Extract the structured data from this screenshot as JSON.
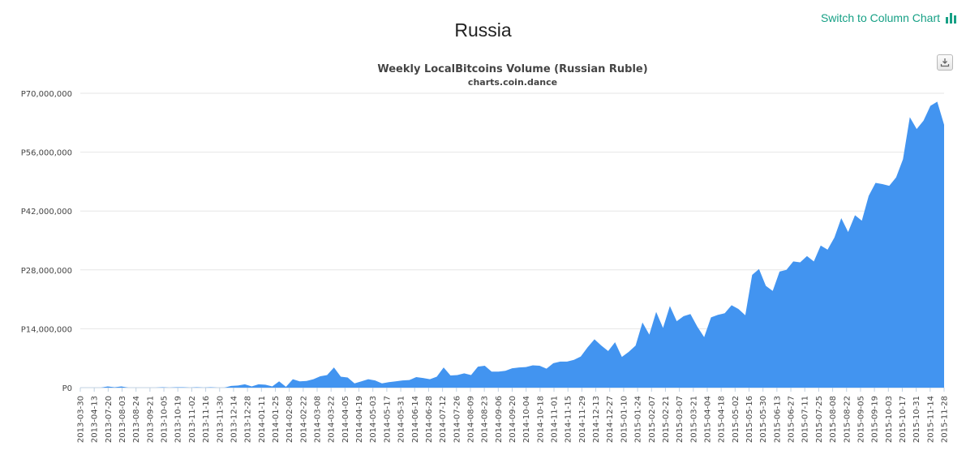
{
  "page": {
    "title": "Russia",
    "switch_label": "Switch to Column Chart",
    "switch_icon": "bar-chart-icon",
    "export_icon": "download-icon",
    "accent_color": "#16a085"
  },
  "chart_data": {
    "type": "area",
    "title": "Weekly LocalBitcoins Volume (Russian Ruble)",
    "subtitle": "charts.coin.dance",
    "xlabel": "",
    "ylabel": "",
    "ylim": [
      0,
      70000000
    ],
    "yticks": [
      0,
      14000000,
      28000000,
      42000000,
      56000000,
      70000000
    ],
    "ytick_labels": [
      "P0",
      "P14,000,000",
      "P28,000,000",
      "P42,000,000",
      "P56,000,000",
      "P70,000,000"
    ],
    "grid": true,
    "legend": "none",
    "color": "#4294f0",
    "x_tick_labels": [
      "2013-03-30",
      "2013-04-13",
      "2013-07-20",
      "2013-08-03",
      "2013-08-24",
      "2013-09-21",
      "2013-10-05",
      "2013-10-19",
      "2013-11-02",
      "2013-11-16",
      "2013-11-30",
      "2013-12-14",
      "2013-12-28",
      "2014-01-11",
      "2014-01-25",
      "2014-02-08",
      "2014-02-22",
      "2014-03-08",
      "2014-03-22",
      "2014-04-05",
      "2014-04-19",
      "2014-05-03",
      "2014-05-17",
      "2014-05-31",
      "2014-06-14",
      "2014-06-28",
      "2014-07-12",
      "2014-07-26",
      "2014-08-09",
      "2014-08-23",
      "2014-09-06",
      "2014-09-20",
      "2014-10-04",
      "2014-10-18",
      "2014-11-01",
      "2014-11-15",
      "2014-11-29",
      "2014-12-13",
      "2014-12-27",
      "2015-01-10",
      "2015-01-24",
      "2015-02-07",
      "2015-02-21",
      "2015-03-07",
      "2015-03-21",
      "2015-04-04",
      "2015-04-18",
      "2015-05-02",
      "2015-05-16",
      "2015-05-30",
      "2015-06-13",
      "2015-06-27",
      "2015-07-11",
      "2015-07-25",
      "2015-08-08",
      "2015-08-22",
      "2015-09-05",
      "2015-09-19",
      "2015-10-03",
      "2015-10-17",
      "2015-10-31",
      "2015-11-14",
      "2015-11-28"
    ],
    "values": [
      0,
      0,
      0,
      0,
      300000,
      100000,
      300000,
      0,
      0,
      0,
      0,
      0,
      100000,
      0,
      100000,
      100000,
      0,
      100000,
      0,
      100000,
      0,
      0,
      400000,
      500000,
      800000,
      300000,
      800000,
      700000,
      300000,
      1500000,
      200000,
      2000000,
      1500000,
      1600000,
      2000000,
      2700000,
      3000000,
      4800000,
      2600000,
      2400000,
      1000000,
      1500000,
      2000000,
      1700000,
      1000000,
      1300000,
      1500000,
      1700000,
      1800000,
      2500000,
      2300000,
      2000000,
      2600000,
      4800000,
      2900000,
      3000000,
      3400000,
      3000000,
      5000000,
      5200000,
      3800000,
      3800000,
      4000000,
      4600000,
      4800000,
      4900000,
      5300000,
      5200000,
      4500000,
      5800000,
      6200000,
      6200000,
      6600000,
      7400000,
      9600000,
      11500000,
      10000000,
      8700000,
      10800000,
      7300000,
      8500000,
      10000000,
      15500000,
      12600000,
      18000000,
      14200000,
      19400000,
      15800000,
      17000000,
      17500000,
      14500000,
      12000000,
      16700000,
      17300000,
      17700000,
      19600000,
      18700000,
      17200000,
      26800000,
      28200000,
      24200000,
      23000000,
      27600000,
      28000000,
      30000000,
      29800000,
      31300000,
      30000000,
      33800000,
      32800000,
      35700000,
      40300000,
      37000000,
      41000000,
      39700000,
      45600000,
      48700000,
      48400000,
      48000000,
      50000000,
      54300000,
      64300000,
      61500000,
      63500000,
      67000000,
      68000000,
      62500000
    ]
  }
}
